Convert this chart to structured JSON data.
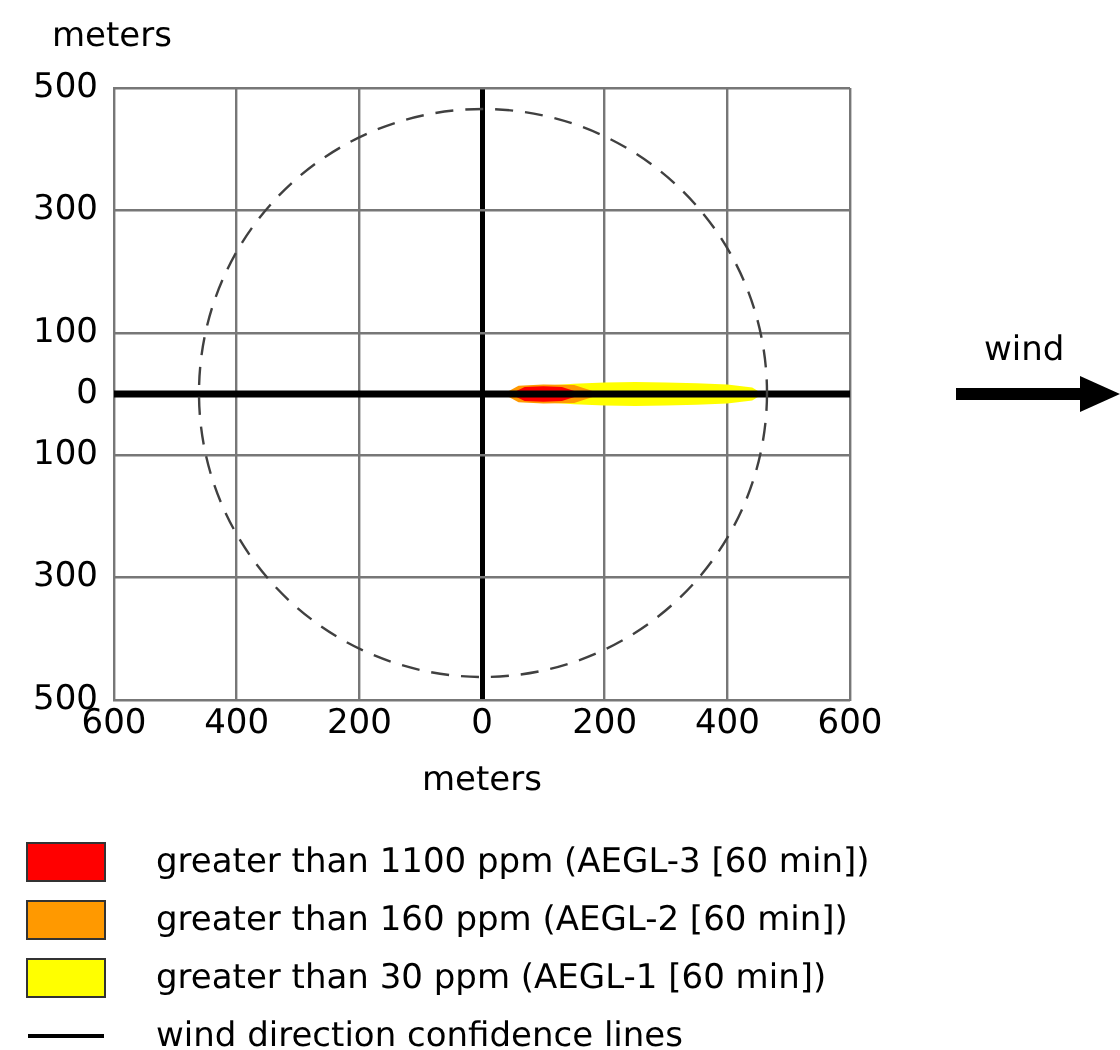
{
  "chart_data": {
    "type": "area",
    "xlabel": "meters",
    "ylabel": "meters",
    "xlim": [
      -600,
      600
    ],
    "ylim": [
      -500,
      500
    ],
    "xticks": [
      {
        "value": -600,
        "label": "600"
      },
      {
        "value": -400,
        "label": "400"
      },
      {
        "value": -200,
        "label": "200"
      },
      0,
      200,
      400,
      600
    ],
    "yticks": [
      500,
      300,
      100,
      0,
      {
        "value": -100,
        "label": "100"
      },
      {
        "value": -300,
        "label": "300"
      },
      {
        "value": -500,
        "label": "500"
      }
    ],
    "grid": true,
    "legend": "bottom",
    "marker": "none",
    "series": [
      {
        "name": "greater than 1100 ppm (AEGL-3 [60 min])",
        "color": "#ff0000",
        "x": [
          50,
          70,
          100,
          130,
          160
        ],
        "values": [
          0,
          10,
          11,
          10,
          0
        ]
      },
      {
        "color": "#ff0000",
        "x": [
          50,
          70,
          100,
          130,
          160
        ],
        "values": [
          0,
          -10,
          -11,
          -10,
          0
        ]
      },
      {
        "name": "greater than 160 ppm (AEGL-2 [60 min])",
        "color": "#ff9900",
        "x": [
          38,
          60,
          100,
          150,
          190
        ],
        "values": [
          0,
          12,
          14,
          13,
          0
        ]
      },
      {
        "color": "#ff9900",
        "x": [
          38,
          60,
          100,
          150,
          190
        ],
        "values": [
          0,
          -12,
          -14,
          -13,
          0
        ]
      },
      {
        "name": "greater than 30 ppm (AEGL-1 [60 min])",
        "color": "#ffff00",
        "x": [
          40,
          60,
          100,
          150,
          200,
          250,
          300,
          350,
          400,
          440,
          455
        ],
        "values": [
          0,
          8,
          12,
          15,
          17,
          18,
          17,
          16,
          14,
          9,
          0
        ]
      },
      {
        "color": "#ffff00",
        "x": [
          40,
          60,
          100,
          150,
          200,
          250,
          300,
          350,
          400,
          440,
          455
        ],
        "values": [
          0,
          -8,
          -12,
          -15,
          -17,
          -18,
          -17,
          -16,
          -14,
          -9,
          0
        ]
      }
    ],
    "ref_lines": [
      {
        "axis": "y",
        "value": 0,
        "color": "#000000"
      }
    ],
    "annotations": [
      "wind",
      "wind direction confidence lines"
    ]
  }
}
